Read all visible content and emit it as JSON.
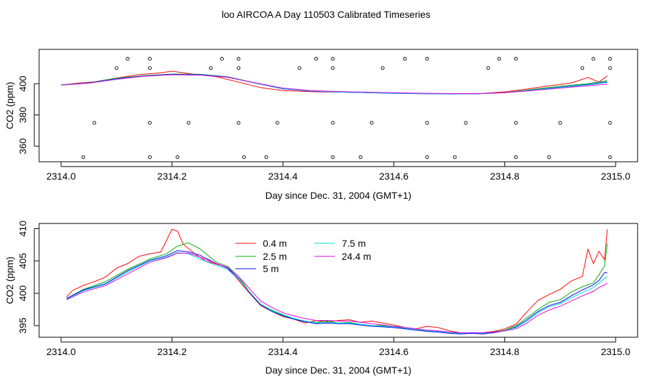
{
  "title": "loo AIRCOA A  Day 110503  Calibrated Timeseries",
  "chart_data": [
    {
      "type": "scatter",
      "xlabel": "Day since Dec. 31, 2004 (GMT+1)",
      "ylabel": "CO2 (ppm)",
      "xlim": [
        2314.0,
        2315.0
      ],
      "ylim": [
        350,
        422
      ],
      "xticks": [
        "2314.0",
        "2314.2",
        "2314.4",
        "2314.6",
        "2314.8",
        "2315.0"
      ],
      "yticks": [
        "360",
        "380",
        "400"
      ],
      "lines": [
        {
          "name": "0.4 m",
          "color": "#ff0000",
          "x": [
            2314.0,
            2314.03,
            2314.06,
            2314.1,
            2314.14,
            2314.18,
            2314.2,
            2314.24,
            2314.28,
            2314.32,
            2314.36,
            2314.4,
            2314.46,
            2314.52,
            2314.58,
            2314.64,
            2314.7,
            2314.76,
            2314.8,
            2314.84,
            2314.88,
            2314.92,
            2314.95,
            2314.97,
            2314.985
          ],
          "y": [
            399.2,
            400.4,
            401.2,
            403.6,
            405.8,
            407,
            408,
            406,
            404.5,
            401,
            397.5,
            395.6,
            394.8,
            394.5,
            394.2,
            393.8,
            393.6,
            393.8,
            394.8,
            396.6,
            398.6,
            400.5,
            404,
            401,
            405
          ]
        },
        {
          "name": "2.5 m",
          "color": "#00b000",
          "x": [
            2314.0,
            2314.05,
            2314.1,
            2314.15,
            2314.2,
            2314.25,
            2314.3,
            2314.35,
            2314.4,
            2314.45,
            2314.5,
            2314.55,
            2314.6,
            2314.65,
            2314.7,
            2314.75,
            2314.8,
            2314.85,
            2314.9,
            2314.95,
            2314.985
          ],
          "y": [
            399.2,
            400.6,
            403.5,
            405.2,
            406.2,
            406,
            404.5,
            400.5,
            396.8,
            395.3,
            394.8,
            394.3,
            393.9,
            393.7,
            393.5,
            393.6,
            394.3,
            396.3,
            398.4,
            400,
            402
          ]
        },
        {
          "name": "5 m",
          "color": "#0000ff",
          "x": [
            2314.0,
            2314.05,
            2314.1,
            2314.15,
            2314.2,
            2314.25,
            2314.3,
            2314.35,
            2314.4,
            2314.45,
            2314.5,
            2314.55,
            2314.6,
            2314.65,
            2314.7,
            2314.75,
            2314.8,
            2314.85,
            2314.9,
            2314.95,
            2314.985
          ],
          "y": [
            399.2,
            400.5,
            403.2,
            405,
            406,
            405.8,
            404.3,
            400.3,
            396.7,
            395.2,
            394.6,
            394.2,
            393.8,
            393.6,
            393.4,
            393.5,
            394.2,
            396,
            397.8,
            399.5,
            401.2
          ]
        },
        {
          "name": "7.5 m",
          "color": "#00e0e0",
          "x": [
            2314.0,
            2314.05,
            2314.1,
            2314.15,
            2314.2,
            2314.25,
            2314.3,
            2314.35,
            2314.4,
            2314.45,
            2314.5,
            2314.55,
            2314.6,
            2314.65,
            2314.7,
            2314.75,
            2314.8,
            2314.85,
            2314.9,
            2314.95,
            2314.985
          ],
          "y": [
            399.2,
            400.4,
            403,
            404.9,
            405.8,
            405.6,
            404.2,
            400.4,
            396.9,
            395.3,
            394.7,
            394.3,
            393.9,
            393.7,
            393.5,
            393.6,
            394.2,
            395.9,
            397.6,
            399.2,
            400.8
          ]
        },
        {
          "name": "24.4 m",
          "color": "#e000e0",
          "x": [
            2314.0,
            2314.05,
            2314.1,
            2314.15,
            2314.2,
            2314.25,
            2314.3,
            2314.35,
            2314.4,
            2314.45,
            2314.5,
            2314.55,
            2314.6,
            2314.65,
            2314.7,
            2314.75,
            2314.8,
            2314.85,
            2314.9,
            2314.95,
            2314.985
          ],
          "y": [
            399.1,
            400.3,
            402.8,
            404.8,
            405.7,
            405.5,
            404.1,
            400.6,
            397.2,
            395.6,
            395,
            394.6,
            394.2,
            393.9,
            393.7,
            393.7,
            394.2,
            395.6,
            397.2,
            398.7,
            399.8
          ]
        }
      ],
      "points": {
        "x": [
          2314.12,
          2314.16,
          2314.29,
          2314.32,
          2314.46,
          2314.49,
          2314.62,
          2314.66,
          2314.79,
          2314.82,
          2314.96,
          2314.99,
          2314.1,
          2314.16,
          2314.27,
          2314.32,
          2314.43,
          2314.49,
          2314.58,
          2314.77,
          2314.94,
          2314.99,
          2314.06,
          2314.16,
          2314.23,
          2314.32,
          2314.39,
          2314.49,
          2314.56,
          2314.66,
          2314.73,
          2314.82,
          2314.9,
          2314.99,
          2314.04,
          2314.16,
          2314.21,
          2314.33,
          2314.37,
          2314.49,
          2314.54,
          2314.66,
          2314.71,
          2314.82,
          2314.88,
          2314.99
        ],
        "y": [
          416,
          416,
          416,
          416,
          416,
          416,
          416,
          416,
          416,
          416,
          416,
          416,
          410,
          410,
          410,
          410,
          410,
          410,
          410,
          410,
          410,
          410,
          375,
          375,
          375,
          375,
          375,
          375,
          375,
          375,
          375,
          375,
          375,
          375,
          353,
          353,
          353,
          353,
          353,
          353,
          353,
          353,
          353,
          353,
          353,
          353
        ]
      }
    },
    {
      "type": "line",
      "xlabel": "Day since Dec. 31, 2004 (GMT+1)",
      "ylabel": "CO2 (ppm)",
      "xlim": [
        2314.0,
        2315.0
      ],
      "ylim": [
        393.2,
        410.8
      ],
      "xticks": [
        "2314.0",
        "2314.2",
        "2314.4",
        "2314.6",
        "2314.8",
        "2315.0"
      ],
      "yticks": [
        "395",
        "400",
        "405",
        "410"
      ],
      "legend": "top-center",
      "series": [
        {
          "name": "0.4 m",
          "color": "#ff0000",
          "x": [
            2314.01,
            2314.02,
            2314.04,
            2314.06,
            2314.08,
            2314.1,
            2314.12,
            2314.14,
            2314.16,
            2314.18,
            2314.2,
            2314.21,
            2314.22,
            2314.24,
            2314.26,
            2314.28,
            2314.3,
            2314.32,
            2314.34,
            2314.36,
            2314.38,
            2314.4,
            2314.42,
            2314.44,
            2314.46,
            2314.48,
            2314.5,
            2314.52,
            2314.54,
            2314.56,
            2314.58,
            2314.6,
            2314.62,
            2314.64,
            2314.66,
            2314.68,
            2314.7,
            2314.72,
            2314.74,
            2314.76,
            2314.78,
            2314.8,
            2314.82,
            2314.84,
            2314.86,
            2314.88,
            2314.9,
            2314.92,
            2314.94,
            2314.95,
            2314.96,
            2314.97,
            2314.98,
            2314.985
          ],
          "y": [
            399.4,
            400.4,
            401.2,
            401.8,
            402.5,
            403.9,
            404.6,
            405.7,
            406.1,
            406.4,
            409.9,
            409.6,
            407.6,
            406.2,
            405,
            404.5,
            404,
            402,
            400,
            398.1,
            397.2,
            396.4,
            396,
            395.4,
            395.8,
            395.6,
            395.8,
            395.9,
            395.5,
            395.7,
            395.4,
            395.1,
            394.7,
            394.5,
            394.9,
            394.7,
            394.2,
            393.9,
            393.8,
            393.9,
            394.1,
            394.5,
            395.2,
            397.1,
            398.9,
            399.8,
            400.6,
            401.9,
            402.6,
            406.8,
            404.6,
            406.5,
            405.2,
            409.9
          ]
        },
        {
          "name": "2.5 m",
          "color": "#00b000",
          "x": [
            2314.01,
            2314.04,
            2314.08,
            2314.12,
            2314.16,
            2314.19,
            2314.21,
            2314.23,
            2314.25,
            2314.28,
            2314.3,
            2314.32,
            2314.34,
            2314.36,
            2314.38,
            2314.4,
            2314.42,
            2314.44,
            2314.46,
            2314.48,
            2314.5,
            2314.52,
            2314.54,
            2314.56,
            2314.58,
            2314.6,
            2314.62,
            2314.64,
            2314.66,
            2314.68,
            2314.7,
            2314.72,
            2314.74,
            2314.76,
            2314.78,
            2314.8,
            2314.82,
            2314.84,
            2314.86,
            2314.88,
            2314.9,
            2314.92,
            2314.94,
            2314.96,
            2314.97,
            2314.98,
            2314.985
          ],
          "y": [
            399.2,
            400.6,
            401.8,
            403.7,
            405.3,
            406.1,
            407.3,
            407.8,
            406.9,
            404.8,
            404.2,
            402.6,
            400.2,
            398.3,
            397.4,
            396.7,
            396.1,
            395.6,
            395.5,
            395.7,
            395.4,
            395.5,
            395.2,
            395,
            395,
            394.8,
            394.6,
            394.4,
            394.2,
            394.1,
            393.9,
            393.8,
            393.9,
            393.8,
            394,
            394.3,
            395,
            396.2,
            397.5,
            398.6,
            399,
            400.2,
            401,
            401.6,
            402.9,
            404.2,
            407.7
          ]
        },
        {
          "name": "5 m",
          "color": "#0000ff",
          "x": [
            2314.01,
            2314.04,
            2314.08,
            2314.12,
            2314.16,
            2314.19,
            2314.21,
            2314.23,
            2314.25,
            2314.28,
            2314.3,
            2314.32,
            2314.34,
            2314.36,
            2314.38,
            2314.4,
            2314.42,
            2314.44,
            2314.46,
            2314.48,
            2314.5,
            2314.52,
            2314.54,
            2314.56,
            2314.58,
            2314.6,
            2314.62,
            2314.64,
            2314.66,
            2314.68,
            2314.7,
            2314.72,
            2314.74,
            2314.76,
            2314.78,
            2314.8,
            2314.82,
            2314.84,
            2314.86,
            2314.88,
            2314.9,
            2314.92,
            2314.94,
            2314.96,
            2314.97,
            2314.98,
            2314.985
          ],
          "y": [
            399.2,
            400.5,
            401.5,
            403.5,
            405.1,
            405.8,
            406.6,
            406.4,
            405.9,
            404.6,
            403.9,
            402.3,
            400.1,
            398.2,
            397.2,
            396.5,
            396,
            395.6,
            395.3,
            395.4,
            395.3,
            395.3,
            395.1,
            394.9,
            394.8,
            394.7,
            394.5,
            394.3,
            394.1,
            394,
            393.8,
            393.7,
            393.8,
            393.7,
            393.9,
            394.2,
            394.8,
            395.9,
            397.2,
            398.1,
            398.6,
            399.6,
            400.5,
            401.3,
            402,
            403.2,
            403.2
          ]
        },
        {
          "name": "7.5 m",
          "color": "#00d8d8",
          "x": [
            2314.01,
            2314.04,
            2314.08,
            2314.12,
            2314.16,
            2314.19,
            2314.21,
            2314.23,
            2314.25,
            2314.28,
            2314.3,
            2314.32,
            2314.34,
            2314.36,
            2314.38,
            2314.4,
            2314.42,
            2314.44,
            2314.46,
            2314.48,
            2314.5,
            2314.52,
            2314.54,
            2314.56,
            2314.58,
            2314.6,
            2314.62,
            2314.64,
            2314.66,
            2314.68,
            2314.7,
            2314.72,
            2314.74,
            2314.76,
            2314.78,
            2314.8,
            2314.82,
            2314.84,
            2314.86,
            2314.88,
            2314.9,
            2314.92,
            2314.94,
            2314.96,
            2314.97,
            2314.98,
            2314.985
          ],
          "y": [
            399.1,
            400.4,
            401.4,
            403.3,
            405,
            405.6,
            406.3,
            406.1,
            405.3,
            404.3,
            403.7,
            402.2,
            400.2,
            398.3,
            397.3,
            396.6,
            396.1,
            395.7,
            395.4,
            395.5,
            395.4,
            395.4,
            395.2,
            395,
            394.9,
            394.8,
            394.6,
            394.4,
            394.2,
            394.1,
            393.9,
            393.8,
            393.9,
            393.8,
            394,
            394.2,
            394.7,
            395.7,
            397,
            397.9,
            398.4,
            399.3,
            400.1,
            400.9,
            401.6,
            402.3,
            402.6
          ]
        },
        {
          "name": "24.4 m",
          "color": "#e000e0",
          "x": [
            2314.01,
            2314.04,
            2314.08,
            2314.12,
            2314.16,
            2314.19,
            2314.21,
            2314.23,
            2314.25,
            2314.28,
            2314.3,
            2314.32,
            2314.34,
            2314.36,
            2314.38,
            2314.4,
            2314.42,
            2314.44,
            2314.46,
            2314.48,
            2314.5,
            2314.52,
            2314.54,
            2314.56,
            2314.58,
            2314.6,
            2314.62,
            2314.64,
            2314.66,
            2314.68,
            2314.7,
            2314.72,
            2314.74,
            2314.76,
            2314.78,
            2314.8,
            2314.82,
            2314.84,
            2314.86,
            2314.88,
            2314.9,
            2314.92,
            2314.94,
            2314.96,
            2314.97,
            2314.98,
            2314.985
          ],
          "y": [
            399,
            400.2,
            401.2,
            403,
            404.8,
            405.5,
            406.2,
            406.2,
            405.6,
            404.6,
            404,
            402.6,
            400.7,
            398.8,
            397.8,
            397,
            396.5,
            396.1,
            395.8,
            395.8,
            395.7,
            395.7,
            395.5,
            395.3,
            395.1,
            394.9,
            394.7,
            394.5,
            394.3,
            394.2,
            394,
            393.9,
            393.9,
            393.9,
            394,
            394.2,
            394.5,
            395.4,
            396.6,
            397.4,
            398,
            398.8,
            399.6,
            400.3,
            400.9,
            401.3,
            401.6
          ]
        }
      ]
    }
  ]
}
